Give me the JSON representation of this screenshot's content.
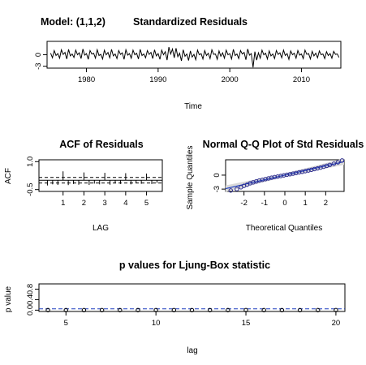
{
  "panels": {
    "residuals": {
      "model_label": "Model: (1,1,2)",
      "title": "Standardized Residuals",
      "xlabel": "Time"
    },
    "acf": {
      "title": "ACF of Residuals",
      "xlabel": "LAG",
      "ylabel": "ACF"
    },
    "qq": {
      "title": "Normal Q-Q Plot of Std Residuals",
      "xlabel": "Theoretical Quantiles",
      "ylabel": "Sample Quantiles"
    },
    "ljung": {
      "title": "p values for Ljung-Box statistic",
      "xlabel": "lag",
      "ylabel": "p value"
    }
  },
  "colors": {
    "line": "#000000",
    "qq_points": "#2b2b8f",
    "qq_band": "#d9d9d9",
    "reference_line": "#1f3fbf"
  },
  "chart_data": [
    {
      "type": "line",
      "title": "Standardized Residuals",
      "subtitle": "Model: (1,1,2)",
      "xlabel": "Time",
      "ylabel": "",
      "xlim": [
        1974.5,
        2015.5
      ],
      "ylim": [
        -3.5,
        3.5
      ],
      "x_ticks": [
        1980,
        1990,
        2000,
        2010
      ],
      "y_ticks": [
        -3,
        0
      ],
      "x_start": 1975.0,
      "x_step": 0.25,
      "series": [
        {
          "values": [
            0.4,
            -0.8,
            1.1,
            -0.2,
            0.3,
            -0.9,
            1.3,
            0.1,
            0.6,
            -1.1,
            1.4,
            -0.3,
            0.2,
            -0.7,
            1.2,
            0.0,
            0.5,
            -1.0,
            1.5,
            -0.1,
            0.3,
            -1.2,
            1.1,
            0.2,
            0.4,
            -0.9,
            1.3,
            -0.2,
            0.1,
            -1.1,
            1.2,
            0.0,
            0.6,
            -0.8,
            1.4,
            -0.3,
            0.2,
            -1.0,
            1.1,
            0.1,
            0.5,
            -1.2,
            1.3,
            -0.1,
            0.3,
            -0.9,
            1.2,
            0.0,
            0.4,
            -1.1,
            1.4,
            -0.2,
            0.2,
            -0.8,
            1.1,
            0.1,
            0.6,
            -1.0,
            1.3,
            -0.3,
            0.3,
            -1.2,
            1.2,
            0.0,
            0.8,
            -1.4,
            2.0,
            0.2,
            1.5,
            -0.8,
            1.7,
            -0.5,
            0.4,
            -1.6,
            1.3,
            -0.4,
            0.2,
            -1.5,
            1.0,
            -0.6,
            0.1,
            -1.3,
            1.2,
            0.0,
            0.3,
            -1.1,
            1.1,
            -0.2,
            0.4,
            -1.0,
            1.3,
            0.1,
            0.2,
            -1.2,
            1.0,
            -0.4,
            0.5,
            -0.9,
            1.2,
            0.0,
            0.3,
            -1.1,
            1.4,
            -0.2,
            0.2,
            -1.0,
            1.1,
            0.2,
            0.6,
            -1.3,
            1.5,
            -0.1,
            0.3,
            -3.3,
            0.8,
            -1.4,
            0.5,
            -0.9,
            1.2,
            0.0,
            0.4,
            -1.1,
            1.0,
            -0.3,
            0.2,
            -1.0,
            1.1,
            0.1,
            0.5,
            -0.8,
            1.2,
            -0.2,
            0.3,
            -1.2,
            1.0,
            0.0,
            0.4,
            -0.9,
            1.1,
            -0.1,
            0.2,
            -1.0,
            1.2,
            0.1,
            0.3,
            -1.1,
            0.9,
            -0.3,
            0.4,
            -0.8,
            1.0,
            0.0,
            0.2,
            -1.0,
            0.8,
            -0.2,
            0.3,
            -0.9,
            0.9,
            0.1,
            0.2,
            -0.7
          ]
        }
      ]
    },
    {
      "type": "bar",
      "title": "ACF of Residuals",
      "xlabel": "LAG",
      "ylabel": "ACF",
      "xlim": [
        0,
        5.6
      ],
      "ylim": [
        -0.6,
        1.1
      ],
      "x_ticks": [
        1,
        2,
        3,
        4,
        5
      ],
      "y_ticks": [
        -0.5,
        1.0
      ],
      "confidence_bounds": [
        0.15,
        -0.15
      ],
      "x": [
        0.25,
        0.5,
        0.75,
        1.0,
        1.25,
        1.5,
        1.75,
        2.0,
        2.25,
        2.5,
        2.75,
        3.0,
        3.25,
        3.5,
        3.75,
        4.0,
        4.25,
        4.5,
        4.75,
        5.0,
        5.25,
        5.5
      ],
      "values": [
        -0.28,
        -0.22,
        -0.25,
        0.48,
        -0.26,
        -0.2,
        -0.24,
        0.42,
        -0.25,
        -0.18,
        -0.22,
        0.4,
        -0.24,
        -0.17,
        -0.2,
        0.38,
        -0.22,
        -0.15,
        -0.19,
        0.36,
        -0.2,
        -0.14
      ]
    },
    {
      "type": "scatter",
      "title": "Normal Q-Q Plot of Std Residuals",
      "xlabel": "Theoretical Quantiles",
      "ylabel": "Sample Quantiles",
      "xlim": [
        -2.9,
        2.9
      ],
      "ylim": [
        -3.5,
        3.3
      ],
      "x_ticks": [
        -2,
        -1,
        0,
        1,
        2
      ],
      "y_ticks": [
        -3,
        0
      ],
      "reference_line": {
        "intercept": 0,
        "slope": 1
      },
      "points": [
        [
          -2.65,
          -3.3
        ],
        [
          -2.35,
          -3.0
        ],
        [
          -2.15,
          -2.6
        ],
        [
          -2.0,
          -2.3
        ],
        [
          -1.85,
          -2.05
        ],
        [
          -1.7,
          -1.75
        ],
        [
          -1.55,
          -1.55
        ],
        [
          -1.4,
          -1.35
        ],
        [
          -1.25,
          -1.15
        ],
        [
          -1.1,
          -1.0
        ],
        [
          -0.95,
          -0.85
        ],
        [
          -0.8,
          -0.7
        ],
        [
          -0.65,
          -0.55
        ],
        [
          -0.5,
          -0.42
        ],
        [
          -0.35,
          -0.3
        ],
        [
          -0.2,
          -0.18
        ],
        [
          -0.05,
          -0.05
        ],
        [
          0.1,
          0.08
        ],
        [
          0.25,
          0.2
        ],
        [
          0.4,
          0.33
        ],
        [
          0.55,
          0.46
        ],
        [
          0.7,
          0.6
        ],
        [
          0.85,
          0.72
        ],
        [
          1.0,
          0.86
        ],
        [
          1.15,
          1.0
        ],
        [
          1.3,
          1.15
        ],
        [
          1.45,
          1.3
        ],
        [
          1.6,
          1.45
        ],
        [
          1.75,
          1.62
        ],
        [
          1.9,
          1.8
        ],
        [
          2.05,
          2.0
        ],
        [
          2.2,
          2.2
        ],
        [
          2.4,
          2.45
        ],
        [
          2.6,
          2.75
        ],
        [
          2.8,
          3.15
        ]
      ]
    },
    {
      "type": "scatter",
      "title": "p values for Ljung-Box statistic",
      "xlabel": "lag",
      "ylabel": "p value",
      "xlim": [
        3.5,
        20.5
      ],
      "ylim": [
        -0.05,
        1.0
      ],
      "x_ticks": [
        5,
        10,
        15,
        20
      ],
      "y_ticks": [
        0.0,
        0.4,
        0.8
      ],
      "significance_line": 0.05,
      "points": [
        [
          4,
          0
        ],
        [
          5,
          0
        ],
        [
          6,
          0
        ],
        [
          7,
          0
        ],
        [
          8,
          0
        ],
        [
          9,
          0
        ],
        [
          10,
          0
        ],
        [
          11,
          0
        ],
        [
          12,
          0
        ],
        [
          13,
          0
        ],
        [
          14,
          0
        ],
        [
          15,
          0
        ],
        [
          16,
          0
        ],
        [
          17,
          0
        ],
        [
          18,
          0
        ],
        [
          19,
          0
        ],
        [
          20,
          0
        ]
      ]
    }
  ]
}
